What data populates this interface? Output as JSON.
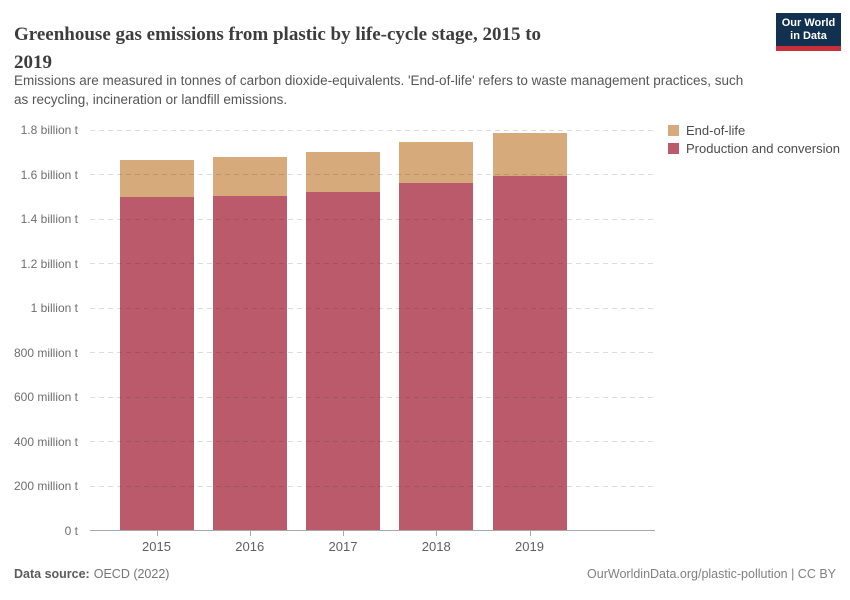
{
  "header": {
    "title": "Greenhouse gas emissions from plastic by life-cycle stage, 2015 to 2019",
    "title_lines": [
      "Greenhouse gas emissions from plastic by life-cycle stage, 2015 to",
      "2019"
    ],
    "subtitle_lines": [
      "Emissions are measured in tonnes of carbon dioxide-equivalents. 'End-of-life' refers to waste management practices, such",
      "as recycling, incineration or landfill emissions."
    ],
    "logo": {
      "line1": "Our World",
      "line2": "in Data",
      "bg_color": "#12304f",
      "accent_color": "#c9303c"
    }
  },
  "chart_data": {
    "type": "bar",
    "stacked": true,
    "title": "Greenhouse gas emissions from plastic by life-cycle stage, 2015 to 2019",
    "categories": [
      "2015",
      "2016",
      "2017",
      "2018",
      "2019"
    ],
    "series": [
      {
        "name": "Production and conversion",
        "color": "#bb5a6a",
        "values": [
          1500,
          1505,
          1520,
          1560,
          1595
        ]
      },
      {
        "name": "End-of-life",
        "color": "#d7aa7c",
        "values": [
          165,
          175,
          180,
          185,
          190
        ]
      }
    ],
    "values_unit": "million tonnes of CO2-equivalents",
    "ylim": [
      0,
      1800
    ],
    "yticks": [
      {
        "value": 0,
        "label": "0 t"
      },
      {
        "value": 200,
        "label": "200 million t"
      },
      {
        "value": 400,
        "label": "400 million t"
      },
      {
        "value": 600,
        "label": "600 million t"
      },
      {
        "value": 800,
        "label": "800 million t"
      },
      {
        "value": 1000,
        "label": "1 billion t"
      },
      {
        "value": 1200,
        "label": "1.2 billion t"
      },
      {
        "value": 1400,
        "label": "1.4 billion t"
      },
      {
        "value": 1600,
        "label": "1.6 billion t"
      },
      {
        "value": 1800,
        "label": "1.8 billion t"
      }
    ],
    "grid": "horizontal-dashed",
    "legend_position": "top-right",
    "legend_order": [
      "End-of-life",
      "Production and conversion"
    ]
  },
  "footer": {
    "source_label": "Data source:",
    "source_value": "OECD (2022)",
    "link": "OurWorldinData.org/plastic-pollution | CC BY"
  }
}
